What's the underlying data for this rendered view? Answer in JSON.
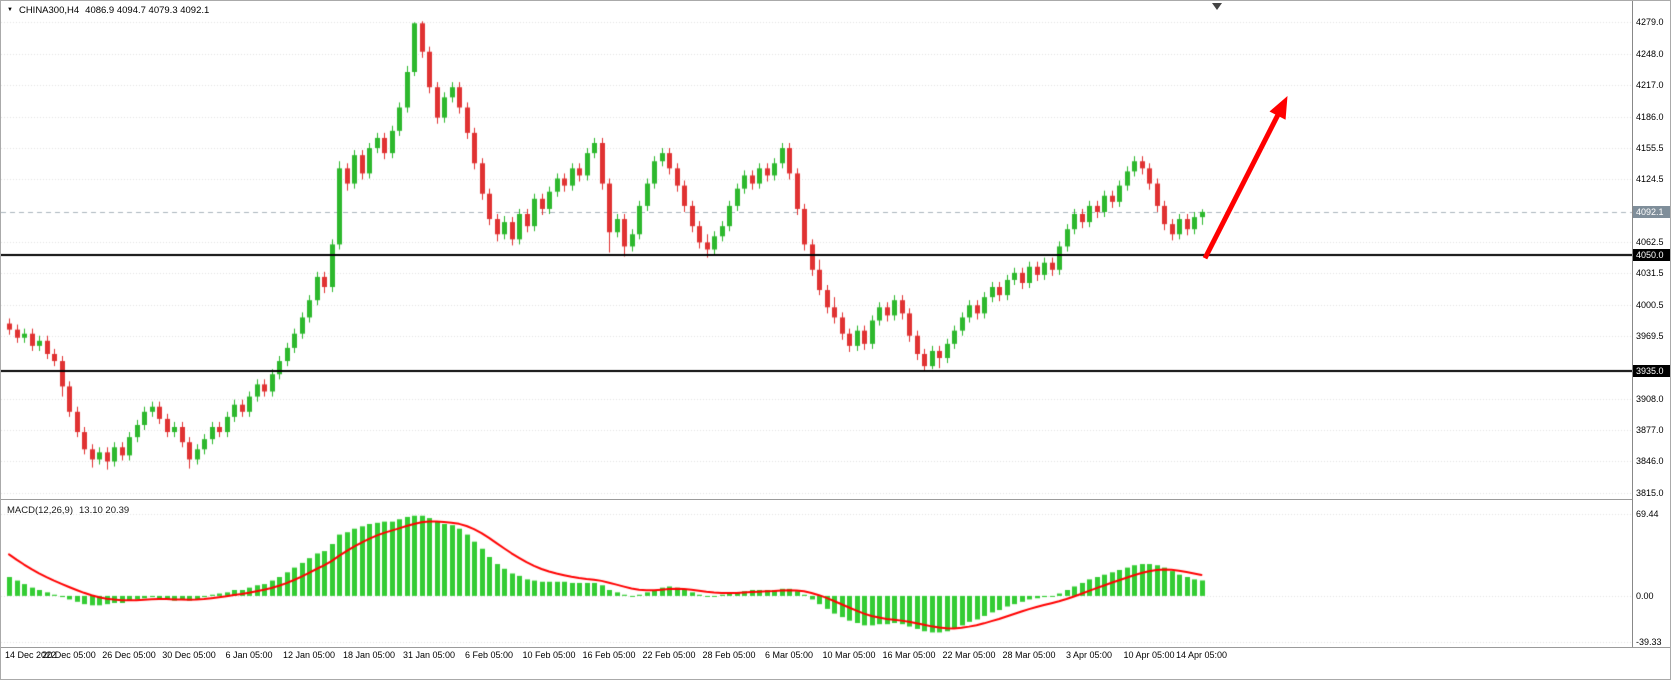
{
  "header": {
    "symbol": "CHINA300,H4",
    "ohlc": "4086.9 4094.7 4079.3 4092.1"
  },
  "indicator_label": {
    "name": "MACD(12,26,9)",
    "values": "13.10 20.39"
  },
  "price_axis": {
    "labels": [
      "4279.0",
      "4248.0",
      "4217.0",
      "4186.0",
      "4155.5",
      "4124.5",
      "4062.5",
      "4031.5",
      "4000.5",
      "3969.5",
      "3908.0",
      "3877.0",
      "3846.0",
      "3815.0"
    ],
    "current_price_label": "4092.1",
    "hline_labels": [
      "4050.0",
      "3935.0"
    ]
  },
  "macd_axis": {
    "labels": [
      "69.44",
      "0.00",
      "-39.33"
    ]
  },
  "timeline": [
    {
      "label": "14 Dec 2022",
      "bar": 0
    },
    {
      "label": "20 Dec 05:00",
      "bar": 8
    },
    {
      "label": "26 Dec 05:00",
      "bar": 16
    },
    {
      "label": "30 Dec 05:00",
      "bar": 24
    },
    {
      "label": "6 Jan 05:00",
      "bar": 32
    },
    {
      "label": "12 Jan 05:00",
      "bar": 40
    },
    {
      "label": "18 Jan 05:00",
      "bar": 48
    },
    {
      "label": "31 Jan 05:00",
      "bar": 56
    },
    {
      "label": "6 Feb 05:00",
      "bar": 64
    },
    {
      "label": "10 Feb 05:00",
      "bar": 72
    },
    {
      "label": "16 Feb 05:00",
      "bar": 80
    },
    {
      "label": "22 Feb 05:00",
      "bar": 88
    },
    {
      "label": "28 Feb 05:00",
      "bar": 96
    },
    {
      "label": "6 Mar 05:00",
      "bar": 104
    },
    {
      "label": "10 Mar 05:00",
      "bar": 112
    },
    {
      "label": "16 Mar 05:00",
      "bar": 120
    },
    {
      "label": "22 Mar 05:00",
      "bar": 128
    },
    {
      "label": "28 Mar 05:00",
      "bar": 136
    },
    {
      "label": "3 Apr 05:00",
      "bar": 144
    },
    {
      "label": "10 Apr 05:00",
      "bar": 152
    },
    {
      "label": "14 Apr 05:00",
      "bar": 159
    }
  ],
  "colors": {
    "background": "#ffffff",
    "bull": "#2db82d",
    "bear": "#e03232",
    "grid": "#e2e2e2",
    "hline": "#000000",
    "price_line": "#aab4bc",
    "price_badge_bg": "#7f8e9a",
    "hline_badge_bg": "#000000",
    "macd_histogram": "#33cc33",
    "macd_signal": "#ff0000",
    "arrow": "#ff0000"
  },
  "chart_data": {
    "type": "candlestick",
    "title": "CHINA300,H4",
    "symbol": "CHINA300",
    "timeframe": "H4",
    "last_bar_ohlc": {
      "open": 4086.9,
      "high": 4094.7,
      "low": 4079.3,
      "close": 4092.1
    },
    "current_price": 4092.1,
    "price_range": [
      3810,
      4300
    ],
    "price_ticks": [
      4279.0,
      4248.0,
      4217.0,
      4186.0,
      4155.5,
      4124.5,
      4062.5,
      4031.5,
      4000.5,
      3969.5,
      3908.0,
      3877.0,
      3846.0,
      3815.0
    ],
    "horizontal_lines": [
      4050.0,
      3935.0
    ],
    "candles": [
      [
        3982,
        3987,
        3971,
        3976
      ],
      [
        3976,
        3981,
        3963,
        3968
      ],
      [
        3968,
        3977,
        3963,
        3972
      ],
      [
        3972,
        3977,
        3955,
        3960
      ],
      [
        3960,
        3970,
        3955,
        3965
      ],
      [
        3965,
        3970,
        3947,
        3952
      ],
      [
        3952,
        3957,
        3940,
        3945
      ],
      [
        3945,
        3950,
        3910,
        3920
      ],
      [
        3920,
        3925,
        3890,
        3895
      ],
      [
        3895,
        3900,
        3870,
        3875
      ],
      [
        3875,
        3880,
        3853,
        3858
      ],
      [
        3858,
        3863,
        3840,
        3848
      ],
      [
        3848,
        3860,
        3843,
        3855
      ],
      [
        3855,
        3860,
        3838,
        3846
      ],
      [
        3846,
        3865,
        3841,
        3860
      ],
      [
        3860,
        3865,
        3847,
        3852
      ],
      [
        3852,
        3875,
        3847,
        3870
      ],
      [
        3870,
        3887,
        3865,
        3882
      ],
      [
        3882,
        3900,
        3877,
        3895
      ],
      [
        3895,
        3905,
        3890,
        3900
      ],
      [
        3900,
        3905,
        3883,
        3888
      ],
      [
        3888,
        3893,
        3870,
        3875
      ],
      [
        3875,
        3885,
        3870,
        3880
      ],
      [
        3880,
        3885,
        3860,
        3865
      ],
      [
        3865,
        3870,
        3839,
        3848
      ],
      [
        3848,
        3863,
        3843,
        3858
      ],
      [
        3858,
        3873,
        3853,
        3868
      ],
      [
        3868,
        3885,
        3863,
        3880
      ],
      [
        3880,
        3885,
        3870,
        3875
      ],
      [
        3875,
        3895,
        3870,
        3890
      ],
      [
        3890,
        3907,
        3885,
        3902
      ],
      [
        3902,
        3907,
        3890,
        3895
      ],
      [
        3895,
        3915,
        3890,
        3910
      ],
      [
        3910,
        3927,
        3905,
        3922
      ],
      [
        3922,
        3927,
        3910,
        3915
      ],
      [
        3915,
        3937,
        3910,
        3932
      ],
      [
        3932,
        3950,
        3927,
        3945
      ],
      [
        3945,
        3963,
        3940,
        3958
      ],
      [
        3958,
        3977,
        3953,
        3972
      ],
      [
        3972,
        3993,
        3967,
        3988
      ],
      [
        3988,
        4010,
        3983,
        4005
      ],
      [
        4005,
        4033,
        4000,
        4028
      ],
      [
        4028,
        4033,
        4012,
        4018
      ],
      [
        4018,
        4065,
        4013,
        4060
      ],
      [
        4060,
        4142,
        4055,
        4135
      ],
      [
        4135,
        4140,
        4113,
        4120
      ],
      [
        4120,
        4153,
        4115,
        4148
      ],
      [
        4148,
        4153,
        4124,
        4130
      ],
      [
        4130,
        4160,
        4125,
        4155
      ],
      [
        4155,
        4170,
        4150,
        4165
      ],
      [
        4165,
        4170,
        4144,
        4150
      ],
      [
        4150,
        4177,
        4145,
        4172
      ],
      [
        4172,
        4200,
        4167,
        4195
      ],
      [
        4195,
        4236,
        4190,
        4230
      ],
      [
        4230,
        4279,
        4226,
        4278
      ],
      [
        4278,
        4280,
        4244,
        4250
      ],
      [
        4250,
        4255,
        4209,
        4215
      ],
      [
        4215,
        4220,
        4179,
        4185
      ],
      [
        4185,
        4210,
        4180,
        4205
      ],
      [
        4205,
        4220,
        4200,
        4215
      ],
      [
        4215,
        4220,
        4189,
        4195
      ],
      [
        4195,
        4200,
        4164,
        4170
      ],
      [
        4170,
        4175,
        4134,
        4140
      ],
      [
        4140,
        4145,
        4104,
        4110
      ],
      [
        4110,
        4115,
        4079,
        4085
      ],
      [
        4085,
        4090,
        4063,
        4070
      ],
      [
        4070,
        4088,
        4065,
        4082
      ],
      [
        4082,
        4087,
        4059,
        4065
      ],
      [
        4065,
        4095,
        4060,
        4090
      ],
      [
        4090,
        4095,
        4072,
        4078
      ],
      [
        4078,
        4110,
        4073,
        4105
      ],
      [
        4105,
        4110,
        4089,
        4095
      ],
      [
        4095,
        4117,
        4090,
        4112
      ],
      [
        4112,
        4130,
        4107,
        4125
      ],
      [
        4125,
        4130,
        4112,
        4118
      ],
      [
        4118,
        4140,
        4113,
        4135
      ],
      [
        4135,
        4140,
        4122,
        4128
      ],
      [
        4128,
        4155,
        4123,
        4150
      ],
      [
        4150,
        4165,
        4145,
        4160
      ],
      [
        4160,
        4165,
        4114,
        4120
      ],
      [
        4120,
        4125,
        4052,
        4072
      ],
      [
        4072,
        4090,
        4067,
        4085
      ],
      [
        4085,
        4090,
        4048,
        4058
      ],
      [
        4058,
        4075,
        4053,
        4070
      ],
      [
        4070,
        4103,
        4065,
        4098
      ],
      [
        4098,
        4125,
        4093,
        4120
      ],
      [
        4120,
        4147,
        4115,
        4142
      ],
      [
        4142,
        4155,
        4137,
        4150
      ],
      [
        4150,
        4155,
        4129,
        4135
      ],
      [
        4135,
        4140,
        4112,
        4118
      ],
      [
        4118,
        4123,
        4092,
        4098
      ],
      [
        4098,
        4103,
        4072,
        4078
      ],
      [
        4078,
        4083,
        4056,
        4062
      ],
      [
        4062,
        4070,
        4047,
        4055
      ],
      [
        4055,
        4073,
        4050,
        4068
      ],
      [
        4068,
        4083,
        4063,
        4078
      ],
      [
        4078,
        4103,
        4073,
        4098
      ],
      [
        4098,
        4120,
        4093,
        4115
      ],
      [
        4115,
        4133,
        4110,
        4128
      ],
      [
        4128,
        4133,
        4114,
        4120
      ],
      [
        4120,
        4140,
        4115,
        4135
      ],
      [
        4135,
        4140,
        4122,
        4128
      ],
      [
        4128,
        4145,
        4123,
        4140
      ],
      [
        4140,
        4160,
        4135,
        4155
      ],
      [
        4155,
        4160,
        4124,
        4130
      ],
      [
        4130,
        4135,
        4089,
        4095
      ],
      [
        4095,
        4100,
        4054,
        4060
      ],
      [
        4060,
        4065,
        4029,
        4035
      ],
      [
        4035,
        4045,
        4010,
        4015
      ],
      [
        4015,
        4020,
        3992,
        3998
      ],
      [
        3998,
        4008,
        3982,
        3988
      ],
      [
        3988,
        3993,
        3966,
        3972
      ],
      [
        3972,
        3977,
        3954,
        3960
      ],
      [
        3960,
        3980,
        3955,
        3975
      ],
      [
        3975,
        3980,
        3956,
        3962
      ],
      [
        3962,
        3990,
        3957,
        3985
      ],
      [
        3985,
        4003,
        3980,
        3998
      ],
      [
        3998,
        4003,
        3984,
        3990
      ],
      [
        3990,
        4010,
        3985,
        4005
      ],
      [
        4005,
        4010,
        3986,
        3992
      ],
      [
        3992,
        3997,
        3964,
        3970
      ],
      [
        3970,
        3975,
        3946,
        3952
      ],
      [
        3952,
        3957,
        3936,
        3940
      ],
      [
        3940,
        3960,
        3937,
        3955
      ],
      [
        3955,
        3960,
        3938,
        3948
      ],
      [
        3948,
        3967,
        3943,
        3962
      ],
      [
        3962,
        3980,
        3957,
        3975
      ],
      [
        3975,
        3993,
        3970,
        3988
      ],
      [
        3988,
        4005,
        3983,
        4000
      ],
      [
        4000,
        4005,
        3986,
        3992
      ],
      [
        3992,
        4013,
        3987,
        4008
      ],
      [
        4008,
        4023,
        4003,
        4018
      ],
      [
        4018,
        4023,
        4004,
        4010
      ],
      [
        4010,
        4030,
        4005,
        4025
      ],
      [
        4025,
        4037,
        4020,
        4032
      ],
      [
        4032,
        4037,
        4016,
        4022
      ],
      [
        4022,
        4043,
        4017,
        4038
      ],
      [
        4038,
        4043,
        4024,
        4030
      ],
      [
        4030,
        4047,
        4025,
        4042
      ],
      [
        4042,
        4047,
        4029,
        4035
      ],
      [
        4035,
        4063,
        4030,
        4058
      ],
      [
        4058,
        4080,
        4053,
        4075
      ],
      [
        4075,
        4095,
        4070,
        4090
      ],
      [
        4090,
        4095,
        4076,
        4082
      ],
      [
        4082,
        4103,
        4077,
        4098
      ],
      [
        4098,
        4103,
        4086,
        4092
      ],
      [
        4092,
        4113,
        4087,
        4108
      ],
      [
        4108,
        4113,
        4096,
        4102
      ],
      [
        4102,
        4123,
        4097,
        4118
      ],
      [
        4118,
        4137,
        4113,
        4132
      ],
      [
        4132,
        4147,
        4127,
        4142
      ],
      [
        4142,
        4147,
        4129,
        4135
      ],
      [
        4135,
        4140,
        4114,
        4120
      ],
      [
        4120,
        4125,
        4092,
        4098
      ],
      [
        4098,
        4103,
        4074,
        4080
      ],
      [
        4080,
        4085,
        4064,
        4070
      ],
      [
        4070,
        4090,
        4065,
        4085
      ],
      [
        4085,
        4090,
        4069,
        4075
      ],
      [
        4075,
        4092,
        4070,
        4086.9
      ],
      [
        4086.9,
        4094.7,
        4079.3,
        4092.1
      ]
    ],
    "indicator": {
      "type": "bar",
      "name": "MACD(12,26,9)",
      "main_value": 13.1,
      "signal_value": 20.39,
      "range": [
        -42.5,
        80.5
      ],
      "axis_ticks": [
        69.44,
        0.0,
        -39.33
      ],
      "signal_seed": 40,
      "signal_smoothing": 0.2,
      "histogram": [
        16,
        13,
        10,
        7,
        5,
        3,
        1,
        -1,
        -3,
        -5,
        -7,
        -8,
        -8,
        -7,
        -6,
        -6,
        -4,
        -3,
        -2,
        -1,
        -2,
        -3,
        -4,
        -3,
        -4,
        -3,
        -1,
        1,
        2,
        3,
        5,
        5,
        7,
        9,
        10,
        13,
        16,
        20,
        24,
        28,
        32,
        36,
        38,
        44,
        52,
        54,
        57,
        59,
        61,
        62,
        63,
        63,
        65,
        67,
        68,
        68,
        66,
        63,
        61,
        60,
        57,
        52,
        46,
        40,
        33,
        27,
        23,
        19,
        17,
        14,
        13,
        12,
        12,
        12,
        12,
        11,
        11,
        11,
        11,
        9,
        5,
        3,
        1,
        0,
        1,
        3,
        5,
        7,
        8,
        7,
        5,
        3,
        1,
        0,
        0,
        1,
        2,
        3,
        4,
        5,
        5,
        5,
        5,
        6,
        6,
        4,
        1,
        -3,
        -7,
        -11,
        -15,
        -18,
        -21,
        -23,
        -25,
        -25,
        -24,
        -24,
        -23,
        -24,
        -26,
        -28,
        -30,
        -31,
        -31,
        -30,
        -28,
        -25,
        -22,
        -20,
        -17,
        -14,
        -12,
        -9,
        -7,
        -5,
        -3,
        -2,
        -1,
        0,
        2,
        5,
        8,
        11,
        14,
        16,
        18,
        20,
        22,
        24,
        26,
        27,
        27,
        26,
        24,
        21,
        18,
        16,
        14,
        13.1
      ]
    },
    "annotation_arrow": {
      "from_bar": 159.5,
      "from_price": 4046,
      "to_bar": 170.5,
      "to_price": 4206,
      "color": "#ff0000",
      "width": 5
    },
    "shift_marker_bar": 161,
    "legend_position": "none",
    "grid": "horizontal-dotted"
  }
}
